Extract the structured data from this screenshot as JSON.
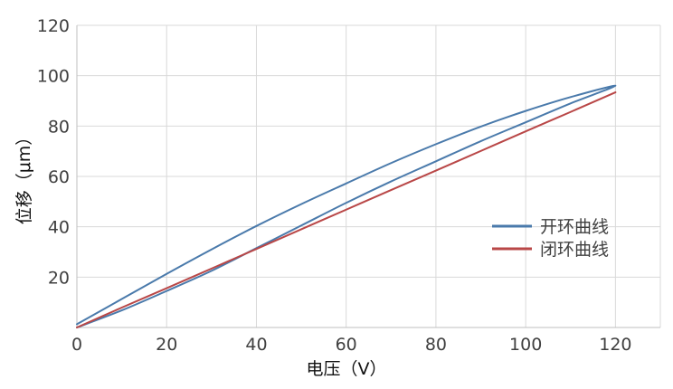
{
  "chart_data": {
    "type": "line",
    "title": "",
    "xlabel": "电压（V）",
    "ylabel": "位移（μm）",
    "xlim": [
      0,
      130
    ],
    "ylim": [
      0,
      120
    ],
    "x_ticks": [
      0,
      20,
      40,
      60,
      80,
      100,
      120
    ],
    "y_ticks": [
      20,
      40,
      60,
      80,
      100,
      120
    ],
    "grid": true,
    "legend_position": "right",
    "series": [
      {
        "name": "开环曲线",
        "color": "#4a7aab",
        "values": [
          [
            0,
            0
          ],
          [
            10,
            6.8
          ],
          [
            20,
            14.5
          ],
          [
            30,
            22.5
          ],
          [
            40,
            31.5
          ],
          [
            50,
            40.5
          ],
          [
            60,
            49.5
          ],
          [
            70,
            58
          ],
          [
            80,
            66
          ],
          [
            90,
            74
          ],
          [
            100,
            81.5
          ],
          [
            110,
            89
          ],
          [
            120,
            96
          ],
          [
            110,
            91.5
          ],
          [
            100,
            86
          ],
          [
            90,
            79.8
          ],
          [
            80,
            72.8
          ],
          [
            70,
            65.3
          ],
          [
            60,
            57.2
          ],
          [
            50,
            49
          ],
          [
            40,
            40.3
          ],
          [
            30,
            31
          ],
          [
            20,
            21.3
          ],
          [
            10,
            11.3
          ],
          [
            0,
            1.3
          ]
        ]
      },
      {
        "name": "闭环曲线",
        "color": "#b94747",
        "values": [
          [
            0,
            0
          ],
          [
            10,
            7.9
          ],
          [
            20,
            15.6
          ],
          [
            30,
            23.4
          ],
          [
            40,
            31.2
          ],
          [
            50,
            39
          ],
          [
            60,
            46.8
          ],
          [
            70,
            54.6
          ],
          [
            80,
            62.3
          ],
          [
            90,
            70.1
          ],
          [
            100,
            77.9
          ],
          [
            110,
            85.6
          ],
          [
            120,
            93.4
          ]
        ]
      }
    ]
  }
}
